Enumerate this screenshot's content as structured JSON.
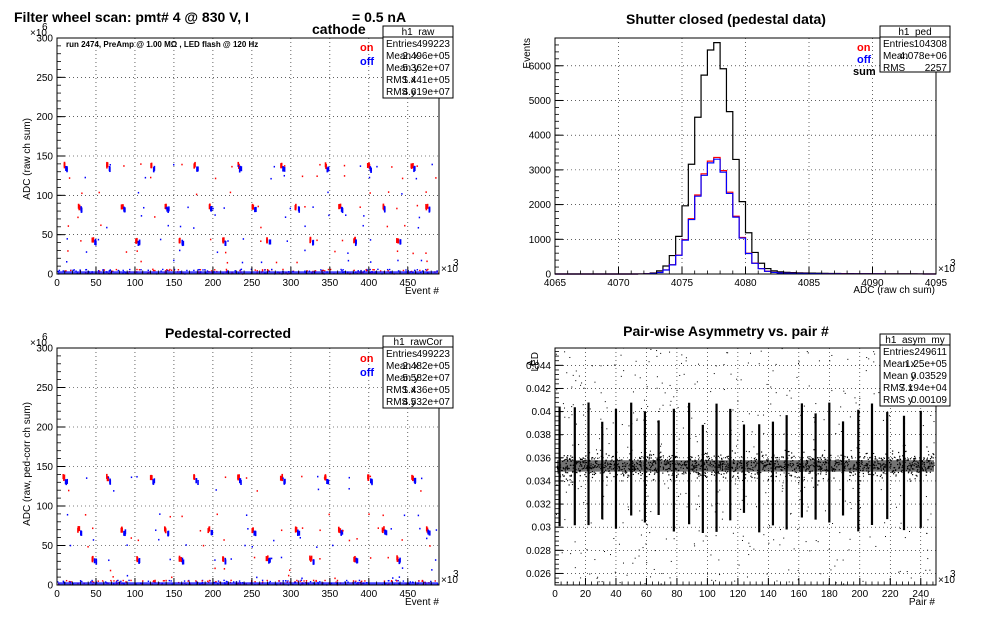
{
  "chart_data": [
    {
      "id": "p1",
      "type": "scatter",
      "title_main": "Filter wheel scan: pmt#   4 @   830 V, I",
      "title_sub": "cathode",
      "title_tail": "= 0.5 nA",
      "note": "run 2474, PreAmp @ 1.00 MΩ , LED flash @  120 Hz",
      "xlabel": "Event #",
      "ylabel": "ADC (raw ch sum)",
      "x_multiplier": "×10",
      "x_exp": "3",
      "y_multiplier": "×10",
      "y_exp": "6",
      "xlim": [
        0,
        490
      ],
      "ylim": [
        0,
        300
      ],
      "xticks": [
        "0",
        "50",
        "100",
        "150",
        "200",
        "250",
        "300",
        "350",
        "400",
        "450"
      ],
      "yticks": [
        "0",
        "50",
        "100",
        "150",
        "200",
        "250",
        "300"
      ],
      "grid": true,
      "legend": [
        {
          "name": "on",
          "color": "#ff0000"
        },
        {
          "name": "off",
          "color": "#0000ff"
        }
      ],
      "stats": {
        "name": "h1_raw",
        "rows": [
          [
            "Entries",
            "499223"
          ],
          [
            "Mean x",
            "2.496e+05"
          ],
          [
            "Mean y",
            "5.362e+07"
          ],
          [
            "RMS x",
            "1.441e+05"
          ],
          [
            "RMS y",
            "4.619e+07"
          ]
        ]
      },
      "levels_on": [
        138,
        123,
        103,
        85,
        73,
        60,
        43,
        28,
        16
      ],
      "levels_off": [
        133,
        119,
        100,
        82,
        70,
        57,
        40,
        25,
        14
      ]
    },
    {
      "id": "p2",
      "type": "area",
      "title": "Shutter closed (pedestal data)",
      "xlabel": "ADC (raw ch sum)",
      "ylabel": "Events",
      "x_multiplier": "×10",
      "x_exp": "3",
      "xlim": [
        4065,
        4095
      ],
      "ylim": [
        0,
        6800
      ],
      "xticks": [
        "4065",
        "4070",
        "4075",
        "4080",
        "4085",
        "4090",
        "4095"
      ],
      "yticks": [
        "0",
        "1000",
        "2000",
        "3000",
        "4000",
        "5000",
        "6000"
      ],
      "grid": true,
      "legend": [
        {
          "name": "on",
          "color": "#ff0000"
        },
        {
          "name": "off",
          "color": "#0000ff"
        },
        {
          "name": "sum",
          "color": "#000000"
        }
      ],
      "stats": {
        "name": "h1_ped",
        "rows": [
          [
            "Entries",
            "104308"
          ],
          [
            "Mean",
            "4.078e+06"
          ],
          [
            "RMS",
            "2257"
          ]
        ]
      },
      "series": [
        {
          "name": "sum",
          "color": "#000000",
          "peak": 6550,
          "mean": 4077.5,
          "sigma": 1.45
        },
        {
          "name": "on",
          "color": "#ff0000",
          "peak": 3300,
          "mean": 4077.5,
          "sigma": 1.45
        },
        {
          "name": "off",
          "color": "#0000ff",
          "peak": 3250,
          "mean": 4077.5,
          "sigma": 1.45
        }
      ]
    },
    {
      "id": "p3",
      "type": "scatter",
      "title": "Pedestal-corrected",
      "xlabel": "Event #",
      "ylabel": "ADC (raw, ped-corr ch sum)",
      "x_multiplier": "×10",
      "x_exp": "3",
      "y_multiplier": "×10",
      "y_exp": "6",
      "xlim": [
        0,
        490
      ],
      "ylim": [
        0,
        300
      ],
      "xticks": [
        "0",
        "50",
        "100",
        "150",
        "200",
        "250",
        "300",
        "350",
        "400",
        "450"
      ],
      "yticks": [
        "0",
        "50",
        "100",
        "150",
        "200",
        "250",
        "300"
      ],
      "grid": true,
      "legend": [
        {
          "name": "on",
          "color": "#ff0000"
        },
        {
          "name": "off",
          "color": "#0000ff"
        }
      ],
      "stats": {
        "name": "h1_rawCor",
        "rows": [
          [
            "Entries",
            "499223"
          ],
          [
            "Mean x",
            "2.482e+05"
          ],
          [
            "Mean y",
            "5.582e+07"
          ],
          [
            "RMS x",
            "1.436e+05"
          ],
          [
            "RMS y",
            "4.532e+07"
          ]
        ]
      },
      "levels_on": [
        136,
        120,
        88,
        70,
        58,
        49,
        33,
        20,
        10
      ],
      "levels_off": [
        131,
        116,
        84,
        66,
        54,
        46,
        30,
        17,
        8
      ]
    },
    {
      "id": "p4",
      "type": "scatter",
      "title": "Pair-wise Asymmetry vs. pair #",
      "xlabel": "Pair #",
      "ylabel": "A",
      "ylabel_sub": "LED",
      "x_multiplier": "×10",
      "x_exp": "3",
      "xlim": [
        0,
        250
      ],
      "ylim": [
        0.025,
        0.0455
      ],
      "xticks": [
        "0",
        "20",
        "40",
        "60",
        "80",
        "100",
        "120",
        "140",
        "160",
        "180",
        "200",
        "220",
        "240"
      ],
      "yticks": [
        "0.026",
        "0.028",
        "0.03",
        "0.032",
        "0.034",
        "0.036",
        "0.038",
        "0.04",
        "0.042",
        "0.044"
      ],
      "grid": true,
      "stats": {
        "name": "h1_asym_my",
        "rows": [
          [
            "Entries",
            "249611"
          ],
          [
            "Mean x",
            "1.25e+05"
          ],
          [
            "Mean y",
            "0.03529"
          ],
          [
            "RMS x",
            "7.194e+04"
          ],
          [
            "RMS y",
            "0.00109"
          ]
        ]
      },
      "band_center": 0.0353,
      "band_halfwidth": 0.0009,
      "spike_pairs": [
        3,
        13,
        22,
        31,
        40,
        50,
        59,
        68,
        78,
        88,
        97,
        106,
        115,
        124,
        134,
        143,
        152,
        162,
        171,
        180,
        189,
        199,
        208,
        218,
        229,
        240
      ]
    }
  ]
}
